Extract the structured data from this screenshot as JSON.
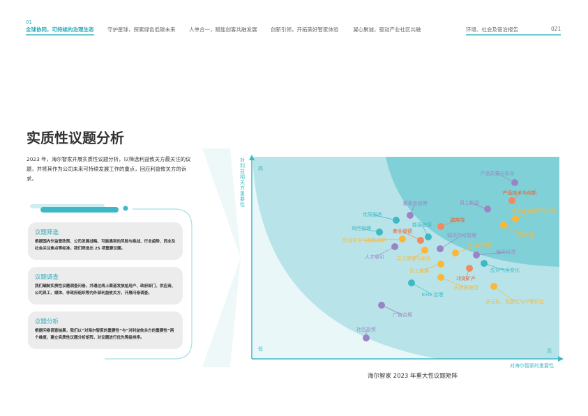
{
  "header": {
    "section_number": "01",
    "nav": [
      "全球协同，可持续的治理生态",
      "守护星球，探索绿色低碳未来",
      "人单合一，赋能创客共融发展",
      "创新引领，开拓美好智家体验",
      "凝心聚诚，驱动产业社区共融"
    ],
    "report_title": "环境、社会及管治报告",
    "page_number": "021"
  },
  "main": {
    "title": "实质性议题分析",
    "intro": "2023 年，海尔智家开展实质性议题分析，以筛选利益攸关方最关注的议题，并将其作为公司未来可持续发展工作的重点，回应利益攸关方的诉求。",
    "steps": [
      {
        "title": "议题筛选",
        "text": "根据国内外监管政策、公司发展战略、可能遇到的风险与挑战、行业趋势、同业及社会关注焦点等标准，我们筛选出 25 项重要议题。"
      },
      {
        "title": "议题调查",
        "text": "我们编制实质性议题调查问卷，并通过线上渠道发放给用户、政府部门、供应商、公司员工、媒体、非政府组织等内外部利益攸关方，开展问卷调查。"
      },
      {
        "title": "议题分析",
        "text": "根据问卷调查结果，我们以“对海尔智家的重要性”与“对利益攸关方的重要性”两个维度，建立实质性议题分析矩阵，对议题进行优先等级排序。"
      }
    ]
  },
  "matrix": {
    "y_axis_label": "对利益相关方重要性",
    "x_axis_label": "对海尔智家的重要性",
    "high_y": "高",
    "low": "低",
    "high_x": "高",
    "caption": "海尔智家 2023 年重大性议题矩阵",
    "colors": {
      "teal": "#3fb8c4",
      "purple": "#9b84c4",
      "orange": "#f08a5d",
      "yellow": "#fbb735",
      "red_text": "#ef5a2a",
      "region_light": "#e9f7f8",
      "region_mid": "#b8e4e9",
      "region_dark": "#80d0d7"
    },
    "topics": [
      {
        "name": "产品质量与安全",
        "color": "purple"
      },
      {
        "name": "产品技术与创新",
        "color": "orange"
      },
      {
        "name": "员工权益",
        "color": "purple"
      },
      {
        "name": "电子废物循环与利用",
        "color": "yellow"
      },
      {
        "name": "绿色产品",
        "color": "yellow"
      },
      {
        "name": "碳排放",
        "color": "orange"
      },
      {
        "name": "董事会治理",
        "color": "purple"
      },
      {
        "name": "优质服务",
        "color": "teal"
      },
      {
        "name": "能源使用",
        "color": "teal"
      },
      {
        "name": "风险管理",
        "color": "teal"
      },
      {
        "name": "商业道德",
        "color": "orange"
      },
      {
        "name": "信息安全与隐私保护",
        "color": "yellow"
      },
      {
        "name": "知识产权管理",
        "color": "purple"
      },
      {
        "name": "人才吸引",
        "color": "purple"
      },
      {
        "name": "员工健康与安全",
        "color": "yellow"
      },
      {
        "name": "供应链管理",
        "color": "yellow"
      },
      {
        "name": "循环经济",
        "color": "purple"
      },
      {
        "name": "应对气候变化",
        "color": "teal"
      },
      {
        "name": "员工发展",
        "color": "yellow"
      },
      {
        "name": "冲突矿产",
        "color": "orange"
      },
      {
        "name": "水资源使用",
        "color": "yellow"
      },
      {
        "name": "ESG 治理",
        "color": "teal"
      },
      {
        "name": "多元化，包容性与平等机会",
        "color": "yellow"
      },
      {
        "name": "广告合规",
        "color": "purple"
      },
      {
        "name": "社区投资",
        "color": "purple"
      }
    ]
  }
}
